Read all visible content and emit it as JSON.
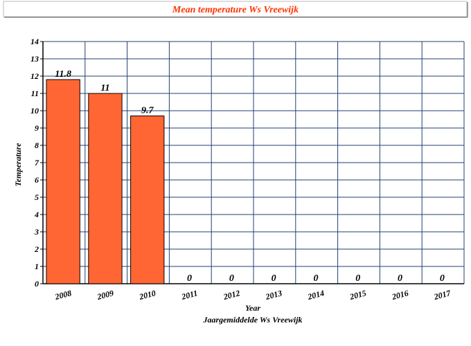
{
  "chart_data": {
    "type": "bar",
    "title": "Mean temperature Ws Vreewijk",
    "x_label": "Year",
    "subtitle": "Jaargemiddelde Ws Vreewijk",
    "y_label": "Temperature",
    "categories": [
      "2008",
      "2009",
      "2010",
      "2011",
      "2012",
      "2013",
      "2014",
      "2015",
      "2016",
      "2017"
    ],
    "values": [
      11.8,
      11,
      9.7,
      0,
      0,
      0,
      0,
      0,
      0,
      0
    ],
    "color": "#ff6633",
    "ylim": [
      0,
      14
    ],
    "yticks": [
      0,
      1,
      2,
      3,
      4,
      5,
      6,
      7,
      8,
      9,
      10,
      11,
      12,
      13,
      14
    ],
    "grid": true
  }
}
